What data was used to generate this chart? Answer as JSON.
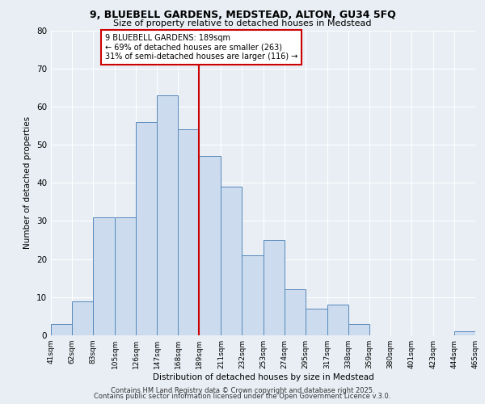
{
  "title": "9, BLUEBELL GARDENS, MEDSTEAD, ALTON, GU34 5FQ",
  "subtitle": "Size of property relative to detached houses in Medstead",
  "xlabel": "Distribution of detached houses by size in Medstead",
  "ylabel": "Number of detached properties",
  "bar_left_edges": [
    41,
    62,
    83,
    105,
    126,
    147,
    168,
    189,
    211,
    232,
    253,
    274,
    295,
    317,
    338,
    359,
    380,
    401,
    423,
    444
  ],
  "bar_widths": [
    21,
    21,
    22,
    21,
    21,
    21,
    21,
    22,
    21,
    21,
    21,
    21,
    22,
    21,
    21,
    21,
    21,
    22,
    21,
    21
  ],
  "bar_heights": [
    3,
    9,
    31,
    31,
    56,
    63,
    54,
    47,
    39,
    21,
    25,
    12,
    7,
    8,
    3,
    0,
    0,
    0,
    0,
    1
  ],
  "tick_labels": [
    "41sqm",
    "62sqm",
    "83sqm",
    "105sqm",
    "126sqm",
    "147sqm",
    "168sqm",
    "189sqm",
    "211sqm",
    "232sqm",
    "253sqm",
    "274sqm",
    "295sqm",
    "317sqm",
    "338sqm",
    "359sqm",
    "380sqm",
    "401sqm",
    "423sqm",
    "444sqm",
    "465sqm"
  ],
  "tick_positions": [
    41,
    62,
    83,
    105,
    126,
    147,
    168,
    189,
    211,
    232,
    253,
    274,
    295,
    317,
    338,
    359,
    380,
    401,
    423,
    444,
    465
  ],
  "bar_color": "#ccdcee",
  "bar_edge_color": "#5588bb",
  "vline_x": 189,
  "vline_color": "#cc0000",
  "ylim": [
    0,
    80
  ],
  "yticks": [
    0,
    10,
    20,
    30,
    40,
    50,
    60,
    70,
    80
  ],
  "annotation_title": "9 BLUEBELL GARDENS: 189sqm",
  "annotation_line1": "← 69% of detached houses are smaller (263)",
  "annotation_line2": "31% of semi-detached houses are larger (116) →",
  "annotation_box_color": "#ffffff",
  "annotation_border_color": "#cc0000",
  "footer1": "Contains HM Land Registry data © Crown copyright and database right 2025.",
  "footer2": "Contains public sector information licensed under the Open Government Licence v.3.0.",
  "background_color": "#e8eef4",
  "plot_bg_color": "#e8eef4",
  "grid_color": "#ffffff"
}
